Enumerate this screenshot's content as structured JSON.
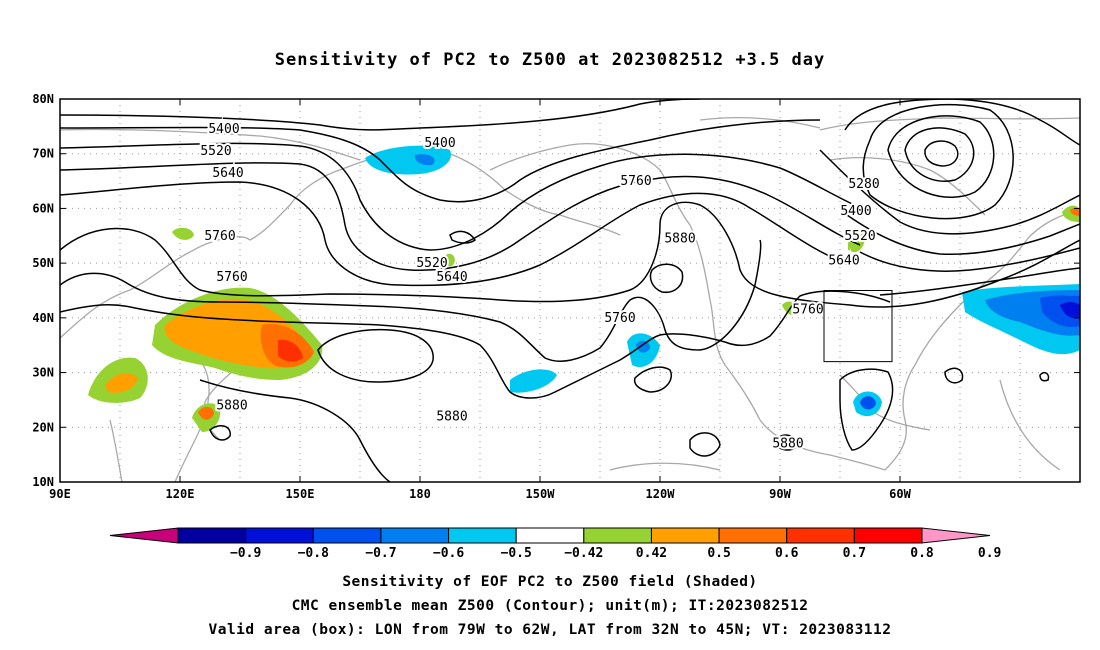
{
  "title": "Sensitivity of PC2 to Z500 at 2023082512 +3.5 day",
  "axes": {
    "lon_ticks": [
      "90E",
      "120E",
      "150E",
      "180",
      "150W",
      "120W",
      "90W",
      "60W"
    ],
    "lat_ticks": [
      "80N",
      "70N",
      "60N",
      "50N",
      "40N",
      "30N",
      "20N",
      "10N"
    ]
  },
  "colorbar": {
    "labels": [
      "-0.9",
      "-0.8",
      "-0.7",
      "-0.6",
      "-0.5",
      "-0.42",
      "0.42",
      "0.5",
      "0.6",
      "0.7",
      "0.8",
      "0.9"
    ],
    "colors": [
      "#c8007a",
      "#0000a0",
      "#0010d8",
      "#0050f0",
      "#0080f0",
      "#00c8f0",
      "#ffffff",
      "#96d232",
      "#ffa000",
      "#ff7000",
      "#ff3000",
      "#ff0000",
      "#ff96c8"
    ]
  },
  "contour_labels": [
    {
      "text": "5400",
      "lon": 131,
      "lat": 74.5
    },
    {
      "text": "5520",
      "lon": 129,
      "lat": 70.5
    },
    {
      "text": "5640",
      "lon": 132,
      "lat": 66.5
    },
    {
      "text": "5760",
      "lon": 130,
      "lat": 55
    },
    {
      "text": "5760",
      "lon": 133,
      "lat": 47.5
    },
    {
      "text": "5880",
      "lon": 133,
      "lat": 24
    },
    {
      "text": "5400",
      "lon": -175,
      "lat": 72
    },
    {
      "text": "5520",
      "lon": -177,
      "lat": 50
    },
    {
      "text": "5640",
      "lon": -172,
      "lat": 47.5
    },
    {
      "text": "5760",
      "lon": -130,
      "lat": 40
    },
    {
      "text": "5880",
      "lon": -172,
      "lat": 22
    },
    {
      "text": "5760",
      "lon": -126,
      "lat": 65
    },
    {
      "text": "5880",
      "lon": -115,
      "lat": 54.5
    },
    {
      "text": "5280",
      "lon": -69,
      "lat": 64.5
    },
    {
      "text": "5400",
      "lon": -71,
      "lat": 59.5
    },
    {
      "text": "5520",
      "lon": -70,
      "lat": 55
    },
    {
      "text": "5640",
      "lon": -74,
      "lat": 50.5
    },
    {
      "text": "5760",
      "lon": -83,
      "lat": 41.5
    },
    {
      "text": "5880",
      "lon": -88,
      "lat": 17
    }
  ],
  "valid_box": {
    "lon_min": -79,
    "lon_max": -62,
    "lat_min": 32,
    "lat_max": 45
  },
  "captions": {
    "line1": "Sensitivity of EOF PC2 to Z500 field (Shaded)",
    "line2": "CMC ensemble mean Z500 (Contour); unit(m); IT:2023082512",
    "line3": "Valid area (box): LON from 79W to 62W, LAT from 32N to 45N; VT: 2023083112"
  }
}
